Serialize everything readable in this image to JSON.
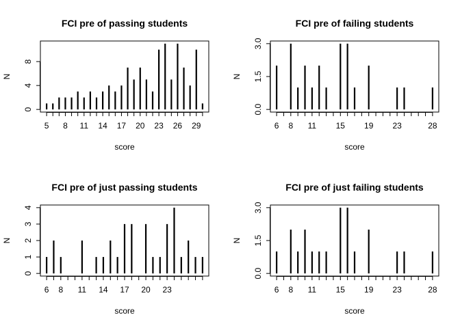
{
  "chart_data": [
    {
      "type": "bar",
      "title": "FCI pre of passing students",
      "xlabel": "score",
      "ylabel": "N",
      "x": [
        5,
        6,
        7,
        8,
        9,
        10,
        11,
        12,
        13,
        14,
        15,
        16,
        17,
        18,
        19,
        20,
        21,
        22,
        23,
        24,
        25,
        26,
        27,
        28,
        29,
        30
      ],
      "values": [
        1,
        1,
        2,
        2,
        2,
        3,
        2,
        3,
        2,
        3,
        4,
        3,
        4,
        7,
        5,
        7,
        5,
        3,
        10,
        11,
        5,
        11,
        7,
        4,
        10,
        1
      ],
      "xticks": [
        5,
        8,
        11,
        14,
        17,
        20,
        23,
        26,
        29
      ],
      "yticks": [
        0,
        4,
        8
      ],
      "ylim": [
        0,
        11
      ],
      "xlim": [
        5,
        30
      ]
    },
    {
      "type": "bar",
      "title": "FCI pre of failing students",
      "xlabel": "score",
      "ylabel": "N",
      "x": [
        6,
        8,
        9,
        10,
        11,
        12,
        13,
        15,
        16,
        17,
        19,
        23,
        24,
        28
      ],
      "values": [
        2,
        3,
        1,
        2,
        1,
        2,
        1,
        3,
        3,
        1,
        2,
        1,
        1,
        1
      ],
      "xticks": [
        6,
        8,
        11,
        15,
        19,
        23,
        28
      ],
      "yticks": [
        0.0,
        1.5,
        3.0
      ],
      "ytick_labels": [
        "0.0",
        "1.5",
        "3.0"
      ],
      "ylim": [
        0,
        3
      ],
      "xlim": [
        6,
        28
      ]
    },
    {
      "type": "bar",
      "title": "FCI pre of just passing students",
      "xlabel": "score",
      "ylabel": "N",
      "x": [
        6,
        7,
        8,
        11,
        13,
        14,
        15,
        16,
        17,
        18,
        20,
        21,
        22,
        23,
        24,
        25,
        26,
        27,
        28
      ],
      "values": [
        1,
        2,
        1,
        2,
        1,
        1,
        2,
        1,
        3,
        3,
        3,
        1,
        1,
        3,
        4,
        1,
        2,
        1,
        1
      ],
      "xticks": [
        6,
        8,
        11,
        14,
        17,
        20,
        23
      ],
      "yticks": [
        0,
        1,
        2,
        3,
        4
      ],
      "ylim": [
        0,
        4
      ],
      "xlim": [
        6,
        28
      ]
    },
    {
      "type": "bar",
      "title": "FCI pre of just failing students",
      "xlabel": "score",
      "ylabel": "N",
      "x": [
        6,
        8,
        9,
        10,
        11,
        12,
        13,
        15,
        16,
        17,
        19,
        23,
        24,
        28
      ],
      "values": [
        1,
        2,
        1,
        2,
        1,
        1,
        1,
        3,
        3,
        1,
        2,
        1,
        1,
        1
      ],
      "xticks": [
        6,
        8,
        11,
        15,
        19,
        23,
        28
      ],
      "yticks": [
        0.0,
        1.5,
        3.0
      ],
      "ytick_labels": [
        "0.0",
        "1.5",
        "3.0"
      ],
      "ylim": [
        0,
        3
      ],
      "xlim": [
        6,
        28
      ]
    }
  ]
}
